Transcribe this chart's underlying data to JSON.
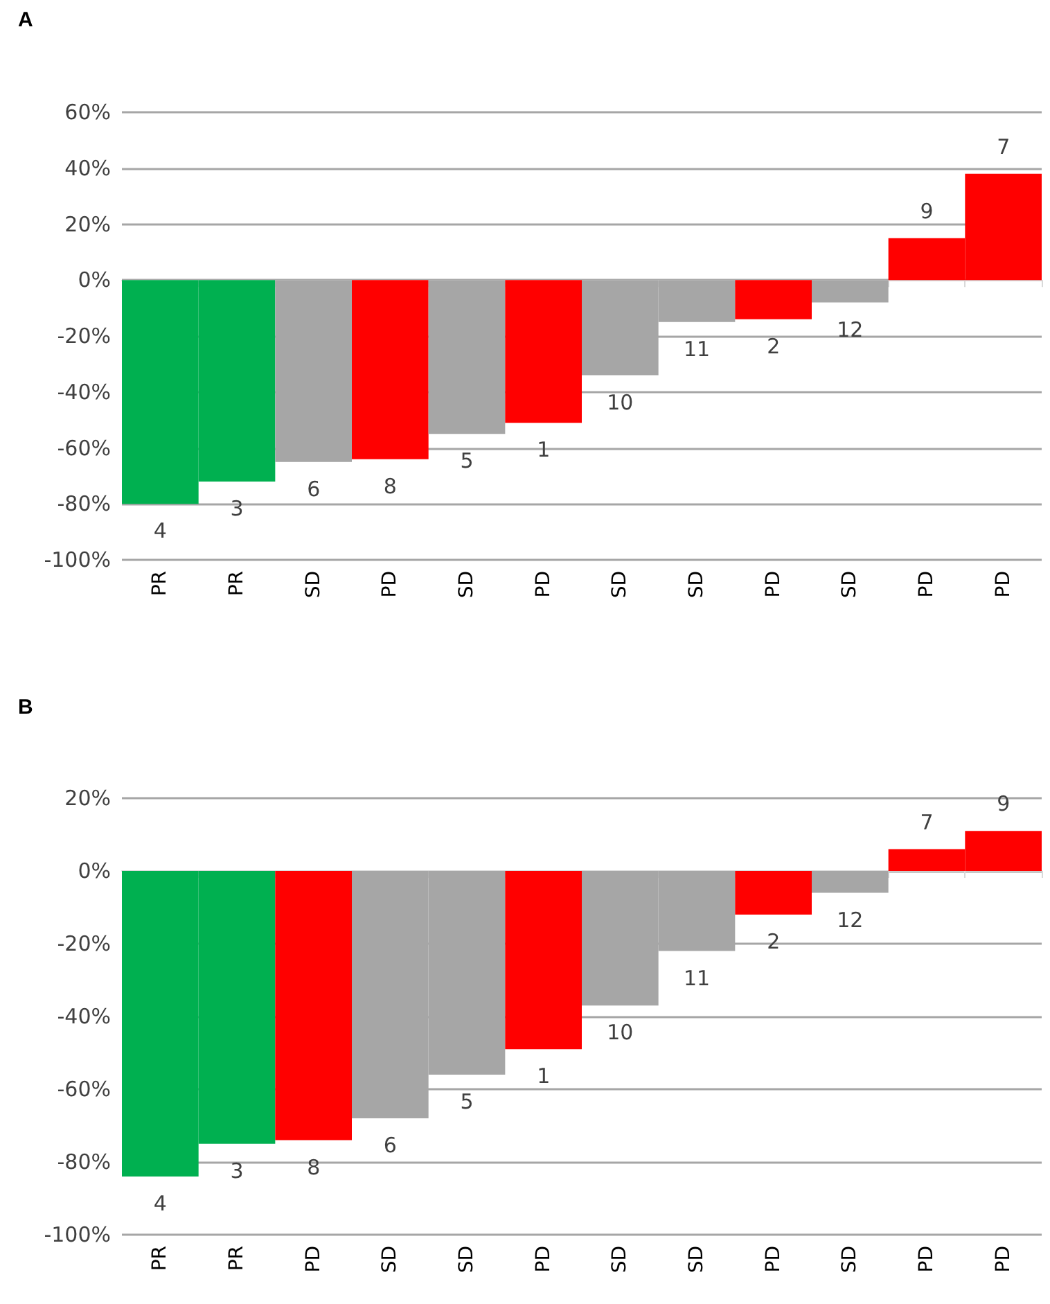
{
  "chart_data": [
    {
      "type": "bar",
      "title": "A",
      "categories": [
        "PR",
        "PR",
        "SD",
        "PD",
        "SD",
        "PD",
        "SD",
        "SD",
        "PD",
        "SD",
        "PD",
        "PD"
      ],
      "values": [
        -80,
        -72,
        -65,
        -64,
        -55,
        -51,
        -34,
        -15,
        -14,
        -8,
        15,
        38
      ],
      "colors": [
        "#00b050",
        "#00b050",
        "#a6a6a6",
        "#ff0000",
        "#a6a6a6",
        "#ff0000",
        "#a6a6a6",
        "#a6a6a6",
        "#ff0000",
        "#a6a6a6",
        "#ff0000",
        "#ff0000"
      ],
      "annotations": [
        "4",
        "3",
        "6",
        "8",
        "5",
        "1",
        "10",
        "11",
        "2",
        "12",
        "9",
        "7"
      ],
      "ylim": [
        -100,
        60
      ],
      "yticks": [
        {
          "value": -100,
          "label": "-100%"
        },
        {
          "value": -80,
          "label": "-80%"
        },
        {
          "value": -60,
          "label": "-60%"
        },
        {
          "value": -40,
          "label": "-40%"
        },
        {
          "value": -20,
          "label": "-20%"
        },
        {
          "value": 0,
          "label": "0%"
        },
        {
          "value": 20,
          "label": "20%"
        },
        {
          "value": 40,
          "label": "40%"
        },
        {
          "value": 60,
          "label": "60%"
        }
      ],
      "grid": "y"
    },
    {
      "type": "bar",
      "title": "B",
      "categories": [
        "PR",
        "PR",
        "PD",
        "SD",
        "SD",
        "PD",
        "SD",
        "SD",
        "PD",
        "SD",
        "PD",
        "PD"
      ],
      "values": [
        -84,
        -75,
        -74,
        -68,
        -56,
        -49,
        -37,
        -22,
        -12,
        -6,
        6,
        11
      ],
      "colors": [
        "#00b050",
        "#00b050",
        "#ff0000",
        "#a6a6a6",
        "#a6a6a6",
        "#ff0000",
        "#a6a6a6",
        "#a6a6a6",
        "#ff0000",
        "#a6a6a6",
        "#ff0000",
        "#ff0000"
      ],
      "annotations": [
        "4",
        "3",
        "8",
        "6",
        "5",
        "1",
        "10",
        "11",
        "2",
        "12",
        "7",
        "9"
      ],
      "ylim": [
        -100,
        20
      ],
      "yticks": [
        {
          "value": -100,
          "label": "-100%"
        },
        {
          "value": -80,
          "label": "-80%"
        },
        {
          "value": -60,
          "label": "-60%"
        },
        {
          "value": -40,
          "label": "-40%"
        },
        {
          "value": -20,
          "label": "-20%"
        },
        {
          "value": 0,
          "label": "0%"
        },
        {
          "value": 20,
          "label": "20%"
        }
      ],
      "grid": "y"
    }
  ]
}
